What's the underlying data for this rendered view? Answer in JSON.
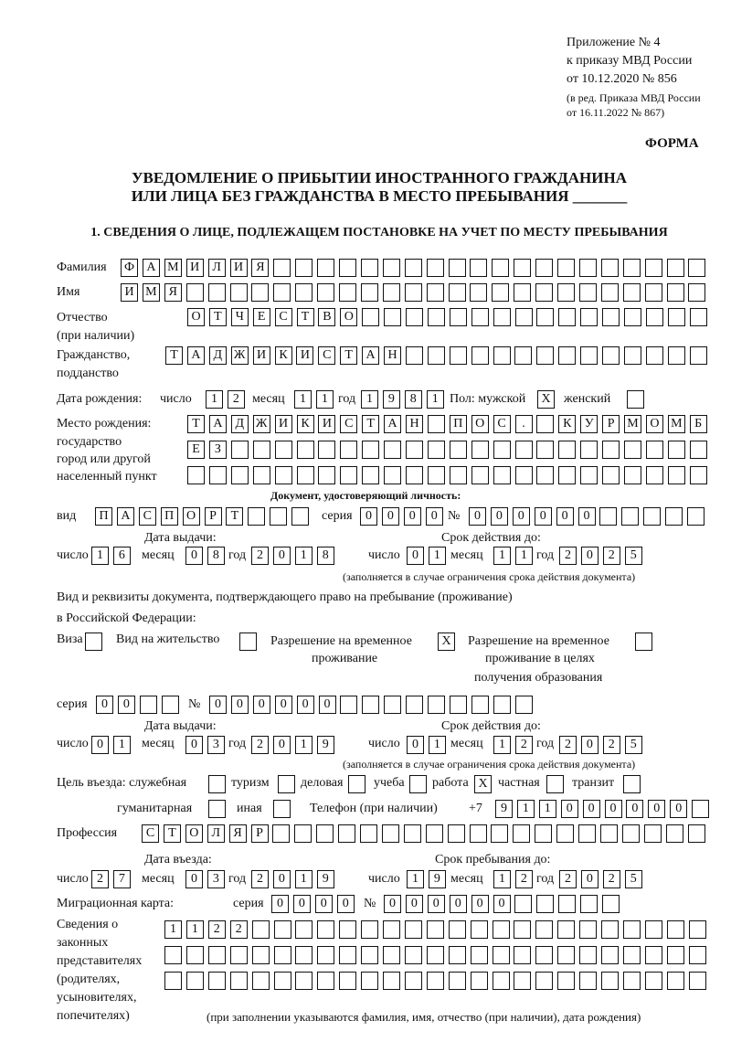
{
  "header": {
    "appendix": "Приложение № 4",
    "order": "к приказу МВД России",
    "order_date": "от 10.12.2020 № 856",
    "revision_1": "(в ред. Приказа МВД России",
    "revision_2": "от 16.11.2022 № 867)",
    "form_label": "ФОРМА",
    "title_1": "УВЕДОМЛЕНИЕ О ПРИБЫТИИ ИНОСТРАННОГО ГРАЖДАНИНА",
    "title_2": "ИЛИ ЛИЦА БЕЗ ГРАЖДАНСТВА В МЕСТО ПРЕБЫВАНИЯ _______",
    "section_1": "1. СВЕДЕНИЯ О ЛИЦЕ, ПОДЛЕЖАЩЕМ ПОСТАНОВКЕ НА УЧЕТ ПО МЕСТУ ПРЕБЫВАНИЯ"
  },
  "labels": {
    "surname": "Фамилия",
    "name": "Имя",
    "patronymic_1": "Отчество",
    "patronymic_2": "(при наличии)",
    "citizenship_1": "Гражданство,",
    "citizenship_2": "подданство",
    "birth_date": "Дата рождения:",
    "day": "число",
    "month": "месяц",
    "year": "год",
    "sex": "Пол: мужской",
    "female": "женский",
    "birthplace_1": "Место рождения:",
    "birthplace_2": "государство",
    "birthplace_3": "город или другой",
    "birthplace_4": "населенный пункт",
    "id_doc": "Документ, удостоверяющий личность:",
    "kind": "вид",
    "series": "серия",
    "number": "№",
    "issue_date": "Дата выдачи:",
    "valid_until": "Срок действия до:",
    "valid_note": "(заполняется в случае ограничения срока действия документа)",
    "right_doc_1": "Вид и реквизиты документа, подтверждающего право на пребывание (проживание)",
    "right_doc_2": "в Российской Федерации:",
    "visa": "Виза",
    "residence": "Вид на жительство",
    "temp_1": "Разрешение на временное",
    "temp_2": "проживание",
    "edu_1": "Разрешение на временное",
    "edu_2": "проживание в целях",
    "edu_3": "получения образования",
    "purpose": "Цель въезда: служебная",
    "tourism": "туризм",
    "business": "деловая",
    "study": "учеба",
    "work": "работа",
    "private": "частная",
    "transit": "транзит",
    "humanitarian": "гуманитарная",
    "other": "иная",
    "phone": "Телефон (при наличии)",
    "phone_prefix": "+7",
    "profession": "Профессия",
    "entry_date": "Дата въезда:",
    "stay_until": "Срок пребывания до:",
    "migration_card": "Миграционная карта:",
    "reps_1": "Сведения о",
    "reps_2": "законных",
    "reps_3": "представителях",
    "reps_4": "(родителях,",
    "reps_5": "усыновителях,",
    "reps_6": "попечителях)",
    "reps_note": "(при заполнении указываются фамилия, имя, отчество (при наличии), дата рождения)"
  },
  "fields": {
    "surname": "ФАМИЛИЯ",
    "name": "ИМЯ",
    "patronymic": "ОТЧЕСТВО",
    "citizenship": "ТАДЖИКИСТАН",
    "birth_day": "12",
    "birth_month": "11",
    "birth_year": "1981",
    "sex_male": "X",
    "sex_female": "",
    "birthplace_1": "ТАДЖИКИСТАН ПОС. КУРМОМБ",
    "birthplace_2": "ЕЗ",
    "birthplace_3": "",
    "doc_kind": "ПАСПОРТ",
    "doc_series": "0000",
    "doc_number": "000000",
    "doc_issue_day": "16",
    "doc_issue_month": "08",
    "doc_issue_year": "2018",
    "doc_valid_day": "01",
    "doc_valid_month": "11",
    "doc_valid_year": "2025",
    "visa": "",
    "residence_permit": "",
    "temp_residence": "X",
    "temp_residence_edu": "",
    "right_series": "00",
    "right_number": "000000",
    "right_issue_day": "01",
    "right_issue_month": "03",
    "right_issue_year": "2019",
    "right_valid_day": "01",
    "right_valid_month": "12",
    "right_valid_year": "2025",
    "purpose_official": "",
    "purpose_tourism": "",
    "purpose_business": "",
    "purpose_study": "",
    "purpose_work": "X",
    "purpose_private": "",
    "purpose_transit": "",
    "purpose_humanitarian": "",
    "purpose_other": "",
    "phone": "911000000",
    "profession": "СТОЛЯР",
    "entry_day": "27",
    "entry_month": "03",
    "entry_year": "2019",
    "stay_day": "19",
    "stay_month": "12",
    "stay_year": "2025",
    "mig_series": "0000",
    "mig_number": "000000",
    "reps_1": "1122",
    "reps_2": "",
    "reps_3": ""
  }
}
